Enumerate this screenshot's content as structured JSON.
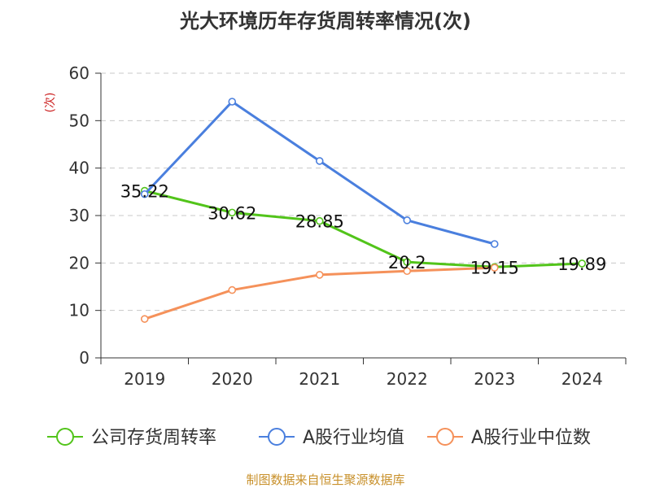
{
  "chart_data": {
    "type": "line",
    "title": "光大环境历年存货周转率情况(次)",
    "ylabel": "(次)",
    "ylim": [
      0,
      60
    ],
    "yticks": [
      0,
      10,
      20,
      30,
      40,
      50,
      60
    ],
    "grid": true,
    "legend_position": "bottom",
    "categories": [
      "2019",
      "2020",
      "2021",
      "2022",
      "2023",
      "2024"
    ],
    "series": [
      {
        "name": "公司存货周转率",
        "color": "#52c41a",
        "values": [
          35.22,
          30.62,
          28.85,
          20.2,
          19.15,
          19.89
        ],
        "labels": [
          "35.22",
          "30.62",
          "28.85",
          "20.2",
          "19.15",
          "19.89"
        ]
      },
      {
        "name": "A股行业均值",
        "color": "#4a7fde",
        "values": [
          34.5,
          54.0,
          41.5,
          29.0,
          24.0,
          null
        ]
      },
      {
        "name": "A股行业中位数",
        "color": "#f5915a",
        "values": [
          8.2,
          14.3,
          17.5,
          18.3,
          19.0,
          null
        ]
      }
    ]
  },
  "footer": {
    "source": "制图数据来自恒生聚源数据库",
    "color": "#c8902a"
  },
  "colors": {
    "ylabel": "#cc2222",
    "grid": "#c8c8c8",
    "axis": "#333333"
  }
}
